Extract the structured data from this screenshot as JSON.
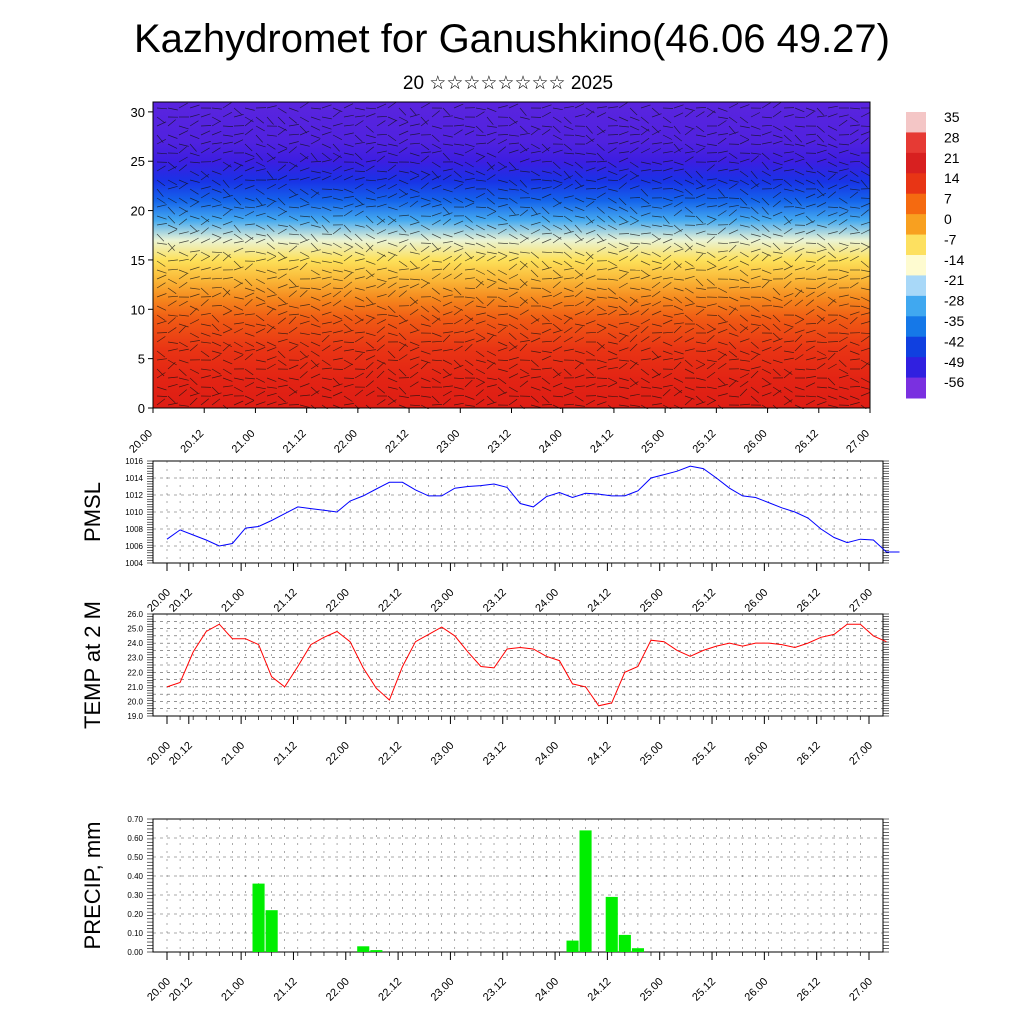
{
  "title": "Kazhydromet for Ganushkino(46.06 49.27)",
  "subtitle": "20 ☆☆☆☆☆☆☆☆ 2025",
  "x_tick_labels": [
    "20.00",
    "20.12",
    "21.00",
    "21.12",
    "22.00",
    "22.12",
    "23.00",
    "23.12",
    "24.00",
    "24.12",
    "25.00",
    "25.12",
    "26.00",
    "26.12",
    "27.00"
  ],
  "colors": {
    "pmsl": "#0000ff",
    "temp": "#ff0000",
    "precip": "#00ee00",
    "grid": "#555555"
  },
  "chart_data": [
    {
      "type": "heatmap",
      "description_of_field": "temperature cross-section with wind barbs",
      "ylim": [
        0,
        31
      ],
      "yticks": [
        0,
        5,
        10,
        15,
        20,
        25,
        30
      ],
      "xlim": [
        0,
        168
      ],
      "colorbar_labels": [
        "35",
        "28",
        "21",
        "14",
        "7",
        "0",
        "-7",
        "-14",
        "-21",
        "-28",
        "-35",
        "-42",
        "-49",
        "-56"
      ],
      "colorbar_colors": [
        "#f4c6c6",
        "#e63a34",
        "#d82020",
        "#e83515",
        "#f56a10",
        "#f8a020",
        "#fde060",
        "#fefbd0",
        "#a8d8f8",
        "#40a8f0",
        "#1578e8",
        "#1040e0",
        "#3020e0",
        "#7a30e0"
      ],
      "profile_levels": [
        0,
        3,
        6,
        9,
        11,
        13,
        15,
        17,
        19,
        21,
        23,
        25,
        27,
        29,
        31
      ],
      "profile_values": [
        30,
        26,
        22,
        16,
        11,
        5,
        0,
        -10,
        -22,
        -32,
        -42,
        -50,
        -54,
        -55,
        -56
      ]
    },
    {
      "type": "line",
      "ylabel": "PMSL",
      "ylim": [
        1004,
        1016
      ],
      "yticks": [
        1004,
        1006,
        1008,
        1010,
        1012,
        1014,
        1016
      ],
      "x": [
        0,
        3,
        6,
        9,
        12,
        15,
        18,
        21,
        24,
        27,
        30,
        33,
        36,
        39,
        42,
        45,
        48,
        51,
        54,
        57,
        60,
        63,
        66,
        69,
        72,
        75,
        78,
        81,
        84,
        87,
        90,
        93,
        96,
        99,
        102,
        105,
        108,
        111,
        114,
        117,
        120,
        123,
        126,
        129,
        132,
        135,
        138,
        141,
        144,
        147,
        150,
        153,
        156,
        159,
        162,
        165,
        168
      ],
      "values": [
        1006.8,
        1007.9,
        1007.3,
        1006.7,
        1006.0,
        1006.3,
        1008.1,
        1008.3,
        1009.0,
        1009.8,
        1010.6,
        1010.4,
        1010.2,
        1010.0,
        1011.3,
        1011.9,
        1012.7,
        1013.5,
        1013.5,
        1012.6,
        1011.9,
        1011.9,
        1012.8,
        1013.0,
        1013.1,
        1013.3,
        1012.9,
        1011.0,
        1010.6,
        1011.8,
        1012.3,
        1011.7,
        1012.2,
        1012.1,
        1011.9,
        1011.9,
        1012.5,
        1014.0,
        1014.4,
        1014.8,
        1015.4,
        1015.1,
        1014.0,
        1012.8,
        1011.9,
        1011.7,
        1011.1,
        1010.5,
        1010.0,
        1009.3,
        1008.0,
        1007.0,
        1006.4,
        1006.8,
        1006.7,
        1005.3,
        1005.3
      ]
    },
    {
      "type": "line",
      "ylabel": "TEMP at 2 M",
      "ylim": [
        19.0,
        26.0
      ],
      "yticks": [
        19.0,
        19.5,
        20.0,
        20.5,
        21.0,
        21.5,
        22.0,
        22.5,
        23.0,
        23.5,
        24.0,
        24.5,
        25.0,
        25.5,
        26.0
      ],
      "ytick_labels": [
        "19.0",
        "20.0",
        "21.0",
        "22.0",
        "23.0",
        "24.0",
        "25.0",
        "26.0"
      ],
      "x": [
        0,
        3,
        6,
        9,
        12,
        15,
        18,
        21,
        24,
        27,
        30,
        33,
        36,
        39,
        42,
        45,
        48,
        51,
        54,
        57,
        60,
        63,
        66,
        69,
        72,
        75,
        78,
        81,
        84,
        87,
        90,
        93,
        96,
        99,
        102,
        105,
        108,
        111,
        114,
        117,
        120,
        123,
        126,
        129,
        132,
        135,
        138,
        141,
        144,
        147,
        150,
        153,
        156,
        159,
        162,
        165
      ],
      "values": [
        21.0,
        21.3,
        23.4,
        24.8,
        25.3,
        24.3,
        24.3,
        23.9,
        21.7,
        21.0,
        22.4,
        23.9,
        24.4,
        24.8,
        24.1,
        22.3,
        20.9,
        20.1,
        22.4,
        24.1,
        24.6,
        25.1,
        24.5,
        23.4,
        22.4,
        22.3,
        23.6,
        23.7,
        23.6,
        23.1,
        22.8,
        21.2,
        21.0,
        19.7,
        19.9,
        22.0,
        22.4,
        24.2,
        24.1,
        23.5,
        23.1,
        23.5,
        23.8,
        24.0,
        23.8,
        24.0,
        24.0,
        23.9,
        23.7,
        24.0,
        24.4,
        24.6,
        25.3,
        25.3,
        24.5,
        24.1
      ]
    },
    {
      "type": "bar",
      "ylabel": "PRECIP, mm",
      "ylim": [
        0,
        0.7
      ],
      "yticks": [
        0.0,
        0.1,
        0.2,
        0.3,
        0.4,
        0.5,
        0.6,
        0.7
      ],
      "ytick_labels": [
        "0.00",
        "0.10",
        "0.20",
        "0.30",
        "0.40",
        "0.50",
        "0.60",
        "0.70"
      ],
      "bar_width_hours": 3,
      "bars": [
        {
          "x": 21,
          "value": 0.36
        },
        {
          "x": 24,
          "value": 0.22
        },
        {
          "x": 45,
          "value": 0.03
        },
        {
          "x": 48,
          "value": 0.01
        },
        {
          "x": 93,
          "value": 0.06
        },
        {
          "x": 96,
          "value": 0.64
        },
        {
          "x": 102,
          "value": 0.29
        },
        {
          "x": 105,
          "value": 0.09
        },
        {
          "x": 108,
          "value": 0.02
        }
      ]
    }
  ]
}
